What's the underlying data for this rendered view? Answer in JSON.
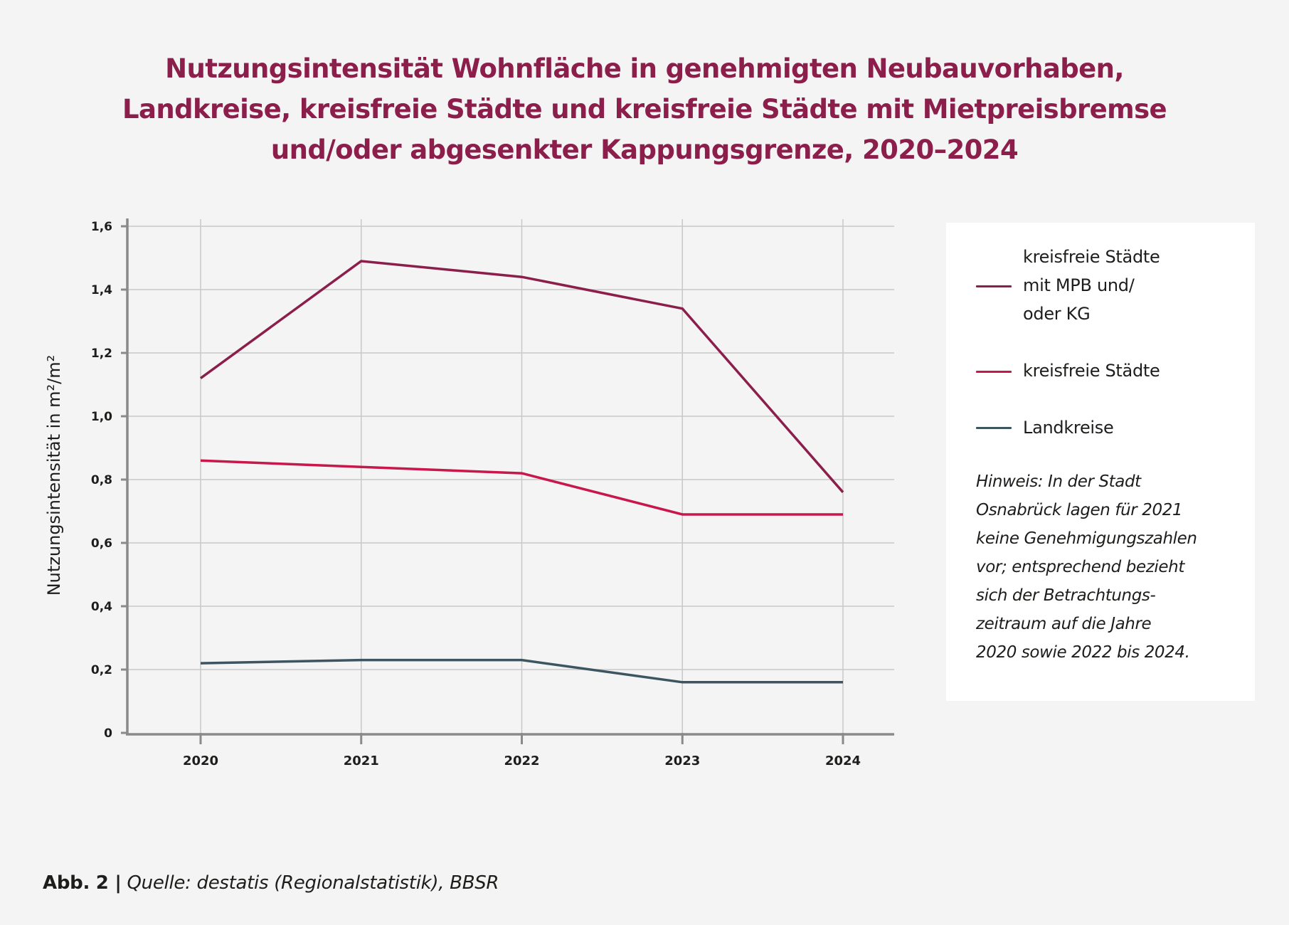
{
  "title_lines": [
    "Nutzungsintensität Wohnfläche in genehmigten Neubauvorhaben,",
    "Landkreise, kreisfreie Städte und kreisfreie Städte mit Mietpreisbremse",
    "und/oder abgesenkter Kappungsgrenze, 2020–2024"
  ],
  "colors": {
    "title": "#8b1e4a",
    "series_mpb": "#8b1e4a",
    "series_kreisfreie": "#c8174a",
    "series_landkreise": "#3d5560",
    "axis": "#8a8a8a",
    "grid": "#c8c8c8"
  },
  "chart_data": {
    "type": "line",
    "title": "Nutzungsintensität Wohnfläche in genehmigten Neubauvorhaben, Landkreise, kreisfreie Städte und kreisfreie Städte mit Mietpreisbremse und/oder abgesenkter Kappungsgrenze, 2020–2024",
    "xlabel": "",
    "ylabel": "Nutzungsintensität in m²/m²",
    "categories": [
      "2020",
      "2021",
      "2022",
      "2023",
      "2024"
    ],
    "ylim": [
      0,
      1.6
    ],
    "yticks": [
      0,
      0.2,
      0.4,
      0.6,
      0.8,
      1.0,
      1.2,
      1.4,
      1.6
    ],
    "ytick_labels": [
      "0",
      "0,2",
      "0,4",
      "0,6",
      "0,8",
      "1,0",
      "1,2",
      "1,4",
      "1,6"
    ],
    "grid": true,
    "legend_position": "right",
    "series": [
      {
        "name": "kreisfreie Städte mit MPB und/oder KG",
        "color": "#8b1e4a",
        "values": [
          1.12,
          1.49,
          1.44,
          1.34,
          0.76
        ]
      },
      {
        "name": "kreisfreie Städte",
        "color": "#c8174a",
        "values": [
          0.86,
          0.84,
          0.82,
          0.69,
          0.69
        ]
      },
      {
        "name": "Landkreise",
        "color": "#3d5560",
        "values": [
          0.22,
          0.23,
          0.23,
          0.16,
          0.16
        ]
      }
    ]
  },
  "legend": {
    "items": [
      {
        "lines": [
          "kreisfreie Städte",
          "mit MPB und/",
          "oder KG"
        ]
      },
      {
        "lines": [
          "kreisfreie Städte"
        ]
      },
      {
        "lines": [
          "Landkreise"
        ]
      }
    ],
    "note_lines": [
      "Hinweis: In der Stadt",
      "Osnabrück lagen für 2021",
      "keine Genehmigungszahlen",
      "vor; entsprechend bezieht",
      "sich der Betrachtungs-",
      "zeitraum auf die Jahre",
      "2020 sowie 2022 bis 2024."
    ]
  },
  "caption": {
    "figure": "Abb. 2 |",
    "source": "Quelle: destatis (Regionalstatistik), BBSR"
  }
}
